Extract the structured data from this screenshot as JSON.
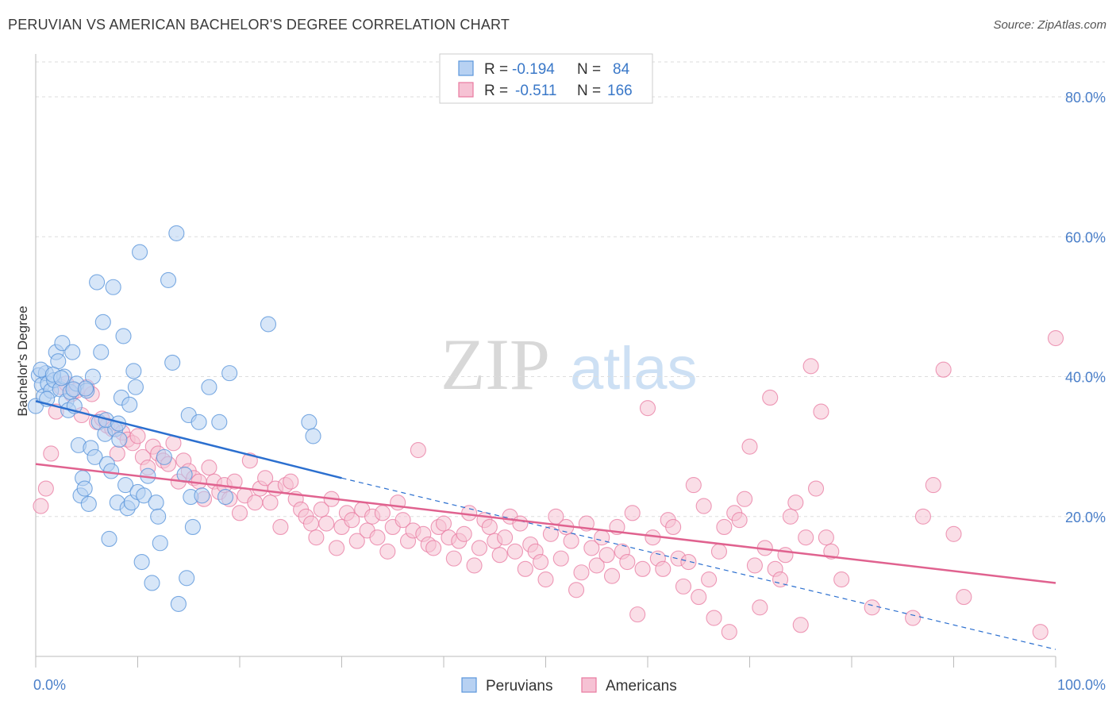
{
  "title": "PERUVIAN VS AMERICAN BACHELOR'S DEGREE CORRELATION CHART",
  "source": "Source: ZipAtlas.com",
  "watermark": {
    "zip": "ZIP",
    "atlas": "atlas"
  },
  "colors": {
    "peruvians": "#5b96db",
    "peruvians_fill": "#b7d1f2",
    "peruvians_line": "#2b6fcf",
    "americans": "#e87aa0",
    "americans_fill": "#f6c2d4",
    "americans_line": "#e0628f",
    "tick_label": "#4a7fc9",
    "grid": "#dddddd"
  },
  "legend": {
    "rows": [
      {
        "r_label": "R = ",
        "r_value": "-0.194",
        "n_label": "N = ",
        "n_value": "84"
      },
      {
        "r_label": "R = ",
        "r_value": "-0.511",
        "n_label": "N = ",
        "n_value": "166"
      }
    ]
  },
  "bottom_legend": [
    "Peruvians",
    "Americans"
  ],
  "chart_data": {
    "type": "scatter",
    "title": "PERUVIAN VS AMERICAN BACHELOR'S DEGREE CORRELATION CHART",
    "xlabel": "",
    "ylabel": "Bachelor's Degree",
    "xlim": [
      0,
      100
    ],
    "ylim": [
      0,
      85
    ],
    "x_tick_labels": [
      "0.0%",
      "100.0%"
    ],
    "y_ticks": [
      20,
      40,
      60,
      80
    ],
    "y_tick_labels": [
      "20.0%",
      "40.0%",
      "60.0%",
      "80.0%"
    ],
    "grid": true,
    "legend_position": "top-center",
    "series": [
      {
        "name": "Peruvians",
        "r": -0.194,
        "n": 84,
        "trend": {
          "x": [
            0,
            30
          ],
          "y": [
            36.5,
            25.5
          ],
          "extended_to": [
            100,
            1.0
          ]
        },
        "points": [
          [
            0,
            35.8
          ],
          [
            0.3,
            40.2
          ],
          [
            0.6,
            38.8
          ],
          [
            0.8,
            37.2
          ],
          [
            1.0,
            40.5
          ],
          [
            1.2,
            39.0
          ],
          [
            1.5,
            38.0
          ],
          [
            1.8,
            39.5
          ],
          [
            2.0,
            43.5
          ],
          [
            2.2,
            42.2
          ],
          [
            2.4,
            38.2
          ],
          [
            2.6,
            44.8
          ],
          [
            2.8,
            40.0
          ],
          [
            3.0,
            36.5
          ],
          [
            3.2,
            35.2
          ],
          [
            3.4,
            37.8
          ],
          [
            3.6,
            43.5
          ],
          [
            3.8,
            35.8
          ],
          [
            4.0,
            39.0
          ],
          [
            4.2,
            30.2
          ],
          [
            4.4,
            23.0
          ],
          [
            4.6,
            25.5
          ],
          [
            4.8,
            24.0
          ],
          [
            5.0,
            38.0
          ],
          [
            5.2,
            21.8
          ],
          [
            5.4,
            29.8
          ],
          [
            5.6,
            40.0
          ],
          [
            5.8,
            28.5
          ],
          [
            6.0,
            53.5
          ],
          [
            6.2,
            33.5
          ],
          [
            6.4,
            43.5
          ],
          [
            6.6,
            47.8
          ],
          [
            6.8,
            31.8
          ],
          [
            7.0,
            27.5
          ],
          [
            7.2,
            16.8
          ],
          [
            7.4,
            26.5
          ],
          [
            7.6,
            52.8
          ],
          [
            7.8,
            32.5
          ],
          [
            8.0,
            22.0
          ],
          [
            8.2,
            31.0
          ],
          [
            8.4,
            37.0
          ],
          [
            8.6,
            45.8
          ],
          [
            8.8,
            24.5
          ],
          [
            9.0,
            21.2
          ],
          [
            9.2,
            36.0
          ],
          [
            9.4,
            22.0
          ],
          [
            9.6,
            40.8
          ],
          [
            9.8,
            38.5
          ],
          [
            10.0,
            23.5
          ],
          [
            10.2,
            57.8
          ],
          [
            10.4,
            13.5
          ],
          [
            10.6,
            23.0
          ],
          [
            11.0,
            25.8
          ],
          [
            11.4,
            10.5
          ],
          [
            11.8,
            22.0
          ],
          [
            12.2,
            16.2
          ],
          [
            12.6,
            28.5
          ],
          [
            13.0,
            53.8
          ],
          [
            13.4,
            42.0
          ],
          [
            13.8,
            60.5
          ],
          [
            14.0,
            7.5
          ],
          [
            14.6,
            26.0
          ],
          [
            14.8,
            11.2
          ],
          [
            15.0,
            34.5
          ],
          [
            15.2,
            22.8
          ],
          [
            15.4,
            18.5
          ],
          [
            16.0,
            33.5
          ],
          [
            16.3,
            23.0
          ],
          [
            17.0,
            38.5
          ],
          [
            18.0,
            33.5
          ],
          [
            18.6,
            22.8
          ],
          [
            19.0,
            40.5
          ],
          [
            22.8,
            47.5
          ],
          [
            26.8,
            33.5
          ],
          [
            27.2,
            31.5
          ],
          [
            0.5,
            41.0
          ],
          [
            1.1,
            36.8
          ],
          [
            1.7,
            40.3
          ],
          [
            2.5,
            39.8
          ],
          [
            3.7,
            38.2
          ],
          [
            4.9,
            38.3
          ],
          [
            6.9,
            33.8
          ],
          [
            8.1,
            33.3
          ],
          [
            12.0,
            20.0
          ]
        ]
      },
      {
        "name": "Americans",
        "r": -0.511,
        "n": 166,
        "trend": {
          "x": [
            0,
            100
          ],
          "y": [
            27.5,
            10.5
          ]
        },
        "points": [
          [
            0.5,
            21.5
          ],
          [
            1.0,
            24.0
          ],
          [
            1.5,
            29.0
          ],
          [
            2.0,
            35.0
          ],
          [
            2.5,
            38.5
          ],
          [
            3.0,
            39.0
          ],
          [
            3.5,
            37.5
          ],
          [
            4.0,
            38.0
          ],
          [
            4.5,
            34.5
          ],
          [
            5.0,
            38.5
          ],
          [
            5.5,
            37.5
          ],
          [
            6.0,
            33.5
          ],
          [
            6.5,
            34.0
          ],
          [
            7.0,
            33.0
          ],
          [
            7.5,
            32.5
          ],
          [
            8.0,
            29.0
          ],
          [
            8.5,
            32.0
          ],
          [
            9.0,
            31.0
          ],
          [
            9.5,
            30.5
          ],
          [
            10.0,
            31.5
          ],
          [
            10.5,
            28.5
          ],
          [
            11.0,
            27.0
          ],
          [
            11.5,
            30.0
          ],
          [
            12.0,
            29.0
          ],
          [
            12.5,
            28.0
          ],
          [
            13.0,
            27.5
          ],
          [
            13.5,
            30.5
          ],
          [
            14.0,
            25.0
          ],
          [
            14.5,
            28.0
          ],
          [
            15.0,
            26.5
          ],
          [
            15.5,
            25.5
          ],
          [
            16.0,
            25.0
          ],
          [
            16.5,
            22.5
          ],
          [
            17.0,
            27.0
          ],
          [
            17.5,
            25.0
          ],
          [
            18.0,
            23.5
          ],
          [
            18.5,
            24.5
          ],
          [
            19.0,
            22.5
          ],
          [
            19.5,
            25.0
          ],
          [
            20.0,
            20.5
          ],
          [
            20.5,
            23.0
          ],
          [
            21.0,
            28.0
          ],
          [
            21.5,
            22.0
          ],
          [
            22.0,
            24.0
          ],
          [
            22.5,
            25.5
          ],
          [
            23.0,
            22.0
          ],
          [
            23.5,
            24.0
          ],
          [
            24.0,
            18.5
          ],
          [
            24.5,
            24.5
          ],
          [
            25.0,
            25.0
          ],
          [
            25.5,
            22.5
          ],
          [
            26.0,
            21.0
          ],
          [
            26.5,
            20.0
          ],
          [
            27.0,
            19.0
          ],
          [
            27.5,
            17.0
          ],
          [
            28.0,
            21.0
          ],
          [
            28.5,
            19.0
          ],
          [
            29.0,
            22.5
          ],
          [
            29.5,
            15.5
          ],
          [
            30.0,
            18.5
          ],
          [
            30.5,
            20.5
          ],
          [
            31.0,
            19.5
          ],
          [
            31.5,
            16.5
          ],
          [
            32.0,
            21.0
          ],
          [
            32.5,
            18.0
          ],
          [
            33.0,
            20.0
          ],
          [
            33.5,
            17.0
          ],
          [
            34.0,
            20.5
          ],
          [
            34.5,
            15.0
          ],
          [
            35.0,
            18.5
          ],
          [
            35.5,
            22.0
          ],
          [
            36.0,
            19.5
          ],
          [
            36.5,
            16.5
          ],
          [
            37.0,
            18.0
          ],
          [
            37.5,
            29.5
          ],
          [
            38.0,
            17.5
          ],
          [
            38.5,
            16.0
          ],
          [
            39.0,
            15.5
          ],
          [
            39.5,
            18.5
          ],
          [
            40.0,
            19.0
          ],
          [
            40.5,
            17.0
          ],
          [
            41.0,
            14.0
          ],
          [
            41.5,
            16.5
          ],
          [
            42.0,
            17.5
          ],
          [
            42.5,
            20.5
          ],
          [
            43.0,
            13.0
          ],
          [
            43.5,
            15.5
          ],
          [
            44.0,
            19.5
          ],
          [
            44.5,
            18.5
          ],
          [
            45.0,
            16.5
          ],
          [
            45.5,
            14.5
          ],
          [
            46.0,
            17.0
          ],
          [
            46.5,
            20.0
          ],
          [
            47.0,
            15.0
          ],
          [
            47.5,
            19.0
          ],
          [
            48.0,
            12.5
          ],
          [
            48.5,
            16.0
          ],
          [
            49.0,
            15.0
          ],
          [
            49.5,
            13.5
          ],
          [
            50.0,
            11.0
          ],
          [
            50.5,
            17.5
          ],
          [
            51.0,
            20.0
          ],
          [
            51.5,
            14.0
          ],
          [
            52.0,
            18.5
          ],
          [
            52.5,
            16.5
          ],
          [
            53.0,
            9.5
          ],
          [
            53.5,
            12.0
          ],
          [
            54.0,
            19.0
          ],
          [
            54.5,
            15.5
          ],
          [
            55.0,
            13.0
          ],
          [
            55.5,
            17.0
          ],
          [
            56.0,
            14.5
          ],
          [
            56.5,
            11.5
          ],
          [
            57.0,
            18.5
          ],
          [
            57.5,
            15.0
          ],
          [
            58.0,
            13.5
          ],
          [
            58.5,
            20.5
          ],
          [
            59.0,
            6.0
          ],
          [
            59.5,
            12.5
          ],
          [
            60.0,
            35.5
          ],
          [
            60.5,
            17.0
          ],
          [
            61.0,
            14.0
          ],
          [
            61.5,
            12.5
          ],
          [
            62.0,
            19.5
          ],
          [
            62.5,
            18.5
          ],
          [
            63.0,
            14.0
          ],
          [
            63.5,
            10.0
          ],
          [
            64.0,
            13.5
          ],
          [
            64.5,
            24.5
          ],
          [
            65.0,
            8.5
          ],
          [
            65.5,
            21.5
          ],
          [
            66.0,
            11.0
          ],
          [
            66.5,
            5.5
          ],
          [
            67.0,
            15.0
          ],
          [
            67.5,
            18.5
          ],
          [
            68.0,
            3.5
          ],
          [
            68.5,
            20.5
          ],
          [
            69.0,
            19.5
          ],
          [
            69.5,
            22.5
          ],
          [
            70.0,
            30.0
          ],
          [
            70.5,
            13.0
          ],
          [
            71.0,
            7.0
          ],
          [
            71.5,
            15.5
          ],
          [
            72.0,
            37.0
          ],
          [
            72.5,
            12.5
          ],
          [
            73.0,
            11.0
          ],
          [
            73.5,
            14.5
          ],
          [
            74.0,
            20.0
          ],
          [
            74.5,
            22.0
          ],
          [
            75.0,
            4.5
          ],
          [
            75.5,
            17.0
          ],
          [
            76.0,
            41.5
          ],
          [
            76.5,
            24.0
          ],
          [
            77.0,
            35.0
          ],
          [
            77.5,
            17.0
          ],
          [
            78.0,
            15.0
          ],
          [
            79.0,
            11.0
          ],
          [
            82.0,
            7.0
          ],
          [
            86.0,
            5.5
          ],
          [
            87.0,
            20.0
          ],
          [
            88.0,
            24.5
          ],
          [
            89.0,
            41.0
          ],
          [
            90.0,
            17.5
          ],
          [
            91.0,
            8.5
          ],
          [
            98.5,
            3.5
          ],
          [
            100.0,
            45.5
          ]
        ]
      }
    ]
  }
}
